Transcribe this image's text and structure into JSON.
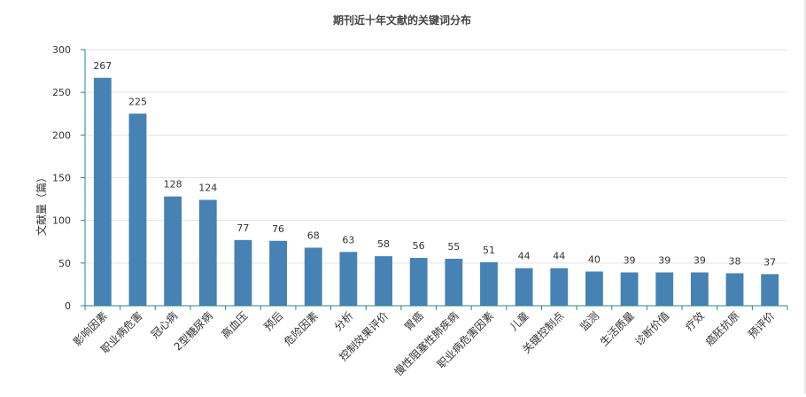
{
  "chart_data": {
    "type": "bar",
    "title": "期刊近十年文献的关键词分布",
    "xlabel": "",
    "ylabel": "文献量（篇）",
    "ylim": [
      0,
      300
    ],
    "yticks": [
      0,
      50,
      100,
      150,
      200,
      250,
      300
    ],
    "grid": true,
    "legend": "none",
    "bar_color": "#4682b4",
    "axis_color": "#1f8a8a",
    "categories": [
      "影响因素",
      "职业病危害",
      "冠心病",
      "2型糖尿病",
      "高血压",
      "预后",
      "危险因素",
      "分析",
      "控制效果评价",
      "胃癌",
      "慢性阻塞性肺疾病",
      "职业病危害因素",
      "儿童",
      "关键控制点",
      "监测",
      "生活质量",
      "诊断价值",
      "疗效",
      "癌胚抗原",
      "预评价"
    ],
    "values": [
      267,
      225,
      128,
      124,
      77,
      76,
      68,
      63,
      58,
      56,
      55,
      51,
      44,
      44,
      40,
      39,
      39,
      39,
      38,
      37
    ]
  }
}
